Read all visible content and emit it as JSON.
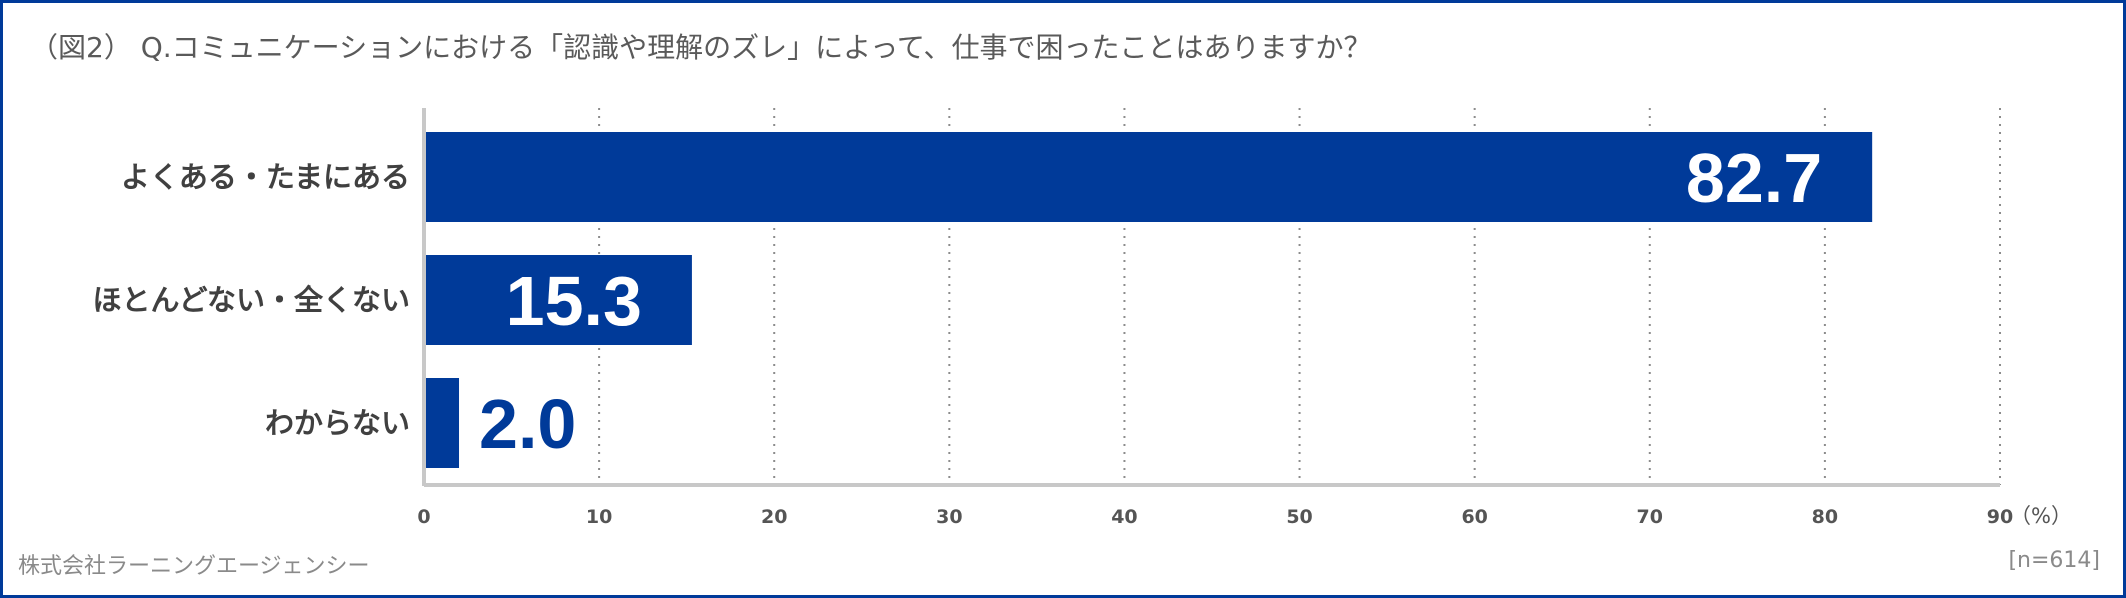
{
  "title": "（図2） Q.コミュニケーションにおける「認識や理解のズレ」によって、仕事で困ったことはありますか？",
  "credit": "株式会社ラーニングエージェンシー",
  "sample_size": "[n=614]",
  "colors": {
    "bar": "#003a99",
    "value_inside": "#ffffff",
    "value_outside": "#003a99",
    "frame": "#003a99",
    "axis": "#c8c8c8",
    "grid": "#8c8c8c"
  },
  "chart_data": {
    "type": "bar",
    "orientation": "horizontal",
    "categories": [
      "よくある・たまにある",
      "ほとんどない・全くない",
      "わからない"
    ],
    "values": [
      82.7,
      15.3,
      2.0
    ],
    "value_labels": [
      "82.7",
      "15.3",
      "2.0"
    ],
    "xlim": [
      0,
      90
    ],
    "xticks": [
      "0",
      "10",
      "20",
      "30",
      "40",
      "50",
      "60",
      "70",
      "80",
      "90"
    ],
    "unit": "（%）",
    "grid": "vertical dotted"
  }
}
